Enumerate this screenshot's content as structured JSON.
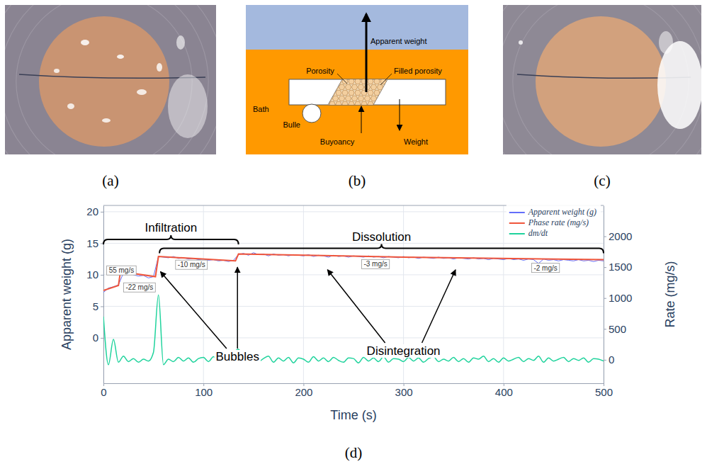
{
  "panel_labels": [
    "(a)",
    "(b)",
    "(c)",
    "(d)"
  ],
  "diagram": {
    "labels": {
      "apparent_weight": "Apparent weight",
      "porosity": "Porosity",
      "filled_porosity": "Filled porosity",
      "bath": "Bath",
      "bubble": "Bulle",
      "buoyancy": "Buyoancy",
      "weight": "Weight"
    }
  },
  "chart_data": {
    "type": "line",
    "xlabel": "Time (s)",
    "ylabel": "Apparent weight (g)",
    "y2label": "Rate (mg/s)",
    "xlim": [
      0,
      500
    ],
    "xticks": [
      0,
      100,
      200,
      300,
      400,
      500
    ],
    "ylim": [
      -7.2,
      21
    ],
    "yticks": [
      0,
      5,
      10,
      15,
      20
    ],
    "y2lim": [
      -380,
      2500
    ],
    "y2ticks": [
      0,
      500,
      1000,
      1500,
      2000
    ],
    "grid": true,
    "legend": "top-right",
    "series": [
      {
        "name": "Apparent weight (g)",
        "color": "#636efa",
        "x": [
          0,
          5,
          10,
          15,
          20,
          25,
          30,
          35,
          40,
          45,
          50,
          55,
          60,
          65,
          70,
          75,
          80,
          85,
          90,
          95,
          100,
          105,
          110,
          115,
          120,
          125,
          130,
          135,
          140,
          145,
          150,
          155,
          160,
          165,
          170,
          175,
          180,
          185,
          190,
          195,
          200,
          205,
          210,
          215,
          220,
          225,
          230,
          235,
          240,
          245,
          250,
          255,
          260,
          265,
          270,
          275,
          280,
          285,
          290,
          295,
          300,
          305,
          310,
          315,
          320,
          325,
          330,
          335,
          340,
          345,
          350,
          355,
          360,
          365,
          370,
          375,
          380,
          385,
          390,
          395,
          400,
          405,
          410,
          415,
          420,
          425,
          430,
          435,
          440,
          445,
          450,
          455,
          460,
          465,
          470,
          475,
          480,
          485,
          490,
          495,
          500
        ],
        "values": [
          7.2,
          7.9,
          8.1,
          8.4,
          10.3,
          10.6,
          10.0,
          9.8,
          9.9,
          9.5,
          9.7,
          12.9,
          12.8,
          12.7,
          12.9,
          12.6,
          12.7,
          12.5,
          12.6,
          12.4,
          12.5,
          12.3,
          12.4,
          12.2,
          12.3,
          12.1,
          12.3,
          13.2,
          13.4,
          13.1,
          13.5,
          13.2,
          13.3,
          13.0,
          13.3,
          13.1,
          13.2,
          13.0,
          13.2,
          13.1,
          13.0,
          13.2,
          12.9,
          13.1,
          13.0,
          12.8,
          13.1,
          12.9,
          13.0,
          12.8,
          13.0,
          12.9,
          12.8,
          13.0,
          12.8,
          12.9,
          12.7,
          12.9,
          12.8,
          12.7,
          12.9,
          12.7,
          12.8,
          12.6,
          12.8,
          12.7,
          12.6,
          12.8,
          12.6,
          12.7,
          12.5,
          12.7,
          12.6,
          12.5,
          12.7,
          12.5,
          12.6,
          12.4,
          12.6,
          12.5,
          12.4,
          12.6,
          12.4,
          12.5,
          12.3,
          12.5,
          12.4,
          11.8,
          12.5,
          12.3,
          12.4,
          12.2,
          12.4,
          12.3,
          12.2,
          12.4,
          12.2,
          12.3,
          12.1,
          12.3,
          12.2
        ]
      },
      {
        "name": "Phase rate (mg/s)",
        "color": "#ef553b",
        "x": [
          0,
          15,
          17,
          52,
          55,
          132,
          135,
          300,
          500
        ],
        "values": [
          7.5,
          8.3,
          10.5,
          9.7,
          12.9,
          12.2,
          13.3,
          12.8,
          12.4
        ]
      },
      {
        "name": "dm/dt",
        "color": "#1fd39c",
        "axis": "y2",
        "x": [
          0,
          5,
          10,
          15,
          20,
          25,
          30,
          35,
          40,
          45,
          50,
          55,
          60,
          65,
          70,
          75,
          80,
          85,
          90,
          95,
          100,
          105,
          110,
          115,
          120,
          125,
          130,
          135,
          140,
          145,
          150,
          155,
          160,
          165,
          170,
          175,
          180,
          185,
          190,
          195,
          200,
          205,
          210,
          215,
          220,
          225,
          230,
          235,
          240,
          245,
          250,
          255,
          260,
          265,
          270,
          275,
          280,
          285,
          290,
          295,
          300,
          305,
          310,
          315,
          320,
          325,
          330,
          335,
          340,
          345,
          350,
          355,
          360,
          365,
          370,
          375,
          380,
          385,
          390,
          395,
          400,
          405,
          410,
          415,
          420,
          425,
          430,
          435,
          440,
          445,
          450,
          455,
          460,
          465,
          470,
          475,
          480,
          485,
          490,
          495,
          500
        ],
        "values": [
          700,
          -80,
          330,
          -40,
          60,
          -30,
          20,
          -40,
          10,
          -20,
          120,
          1050,
          -80,
          10,
          -30,
          40,
          -20,
          30,
          -40,
          20,
          40,
          -30,
          50,
          -20,
          10,
          30,
          120,
          170,
          20,
          -40,
          50,
          -30,
          20,
          60,
          -40,
          30,
          -20,
          40,
          -50,
          30,
          10,
          -40,
          50,
          -20,
          30,
          -30,
          40,
          -10,
          -40,
          30,
          20,
          -50,
          40,
          -20,
          30,
          -30,
          50,
          -40,
          20,
          10,
          -30,
          40,
          -20,
          30,
          -40,
          20,
          50,
          -30,
          10,
          -20,
          40,
          -30,
          20,
          -40,
          30,
          10,
          60,
          -30,
          20,
          -40,
          30,
          -20,
          10,
          40,
          -30,
          20,
          -10,
          60,
          -40,
          30,
          -20,
          10,
          40,
          -30,
          20,
          -10,
          30,
          -40,
          20,
          10,
          -20
        ]
      }
    ],
    "rate_labels": [
      {
        "text": "55 mg/s",
        "x": 18,
        "y": 10.6
      },
      {
        "text": "-22 mg/s",
        "x": 36,
        "y": 7.9
      },
      {
        "text": "-10 mg/s",
        "x": 88,
        "y": 11.5
      },
      {
        "text": "-3 mg/s",
        "x": 272,
        "y": 11.6
      },
      {
        "text": "-2 mg/s",
        "x": 442,
        "y": 11.0
      }
    ],
    "brackets": [
      {
        "text": "Infiltration",
        "x": [
          0,
          135
        ],
        "y": 15.6
      },
      {
        "text": "Dissolution",
        "x": [
          56,
          500
        ],
        "y": 14.2
      }
    ],
    "annotations": [
      {
        "text": "Bubbles",
        "x": 134,
        "y": -3.1,
        "arrows": [
          [
            57,
            10.5
          ],
          [
            134,
            11.2
          ]
        ]
      },
      {
        "text": "Disintegration",
        "x": 300,
        "y": -2.2,
        "arrows": [
          [
            224,
            10.8
          ],
          [
            352,
            10.8
          ]
        ]
      }
    ]
  }
}
